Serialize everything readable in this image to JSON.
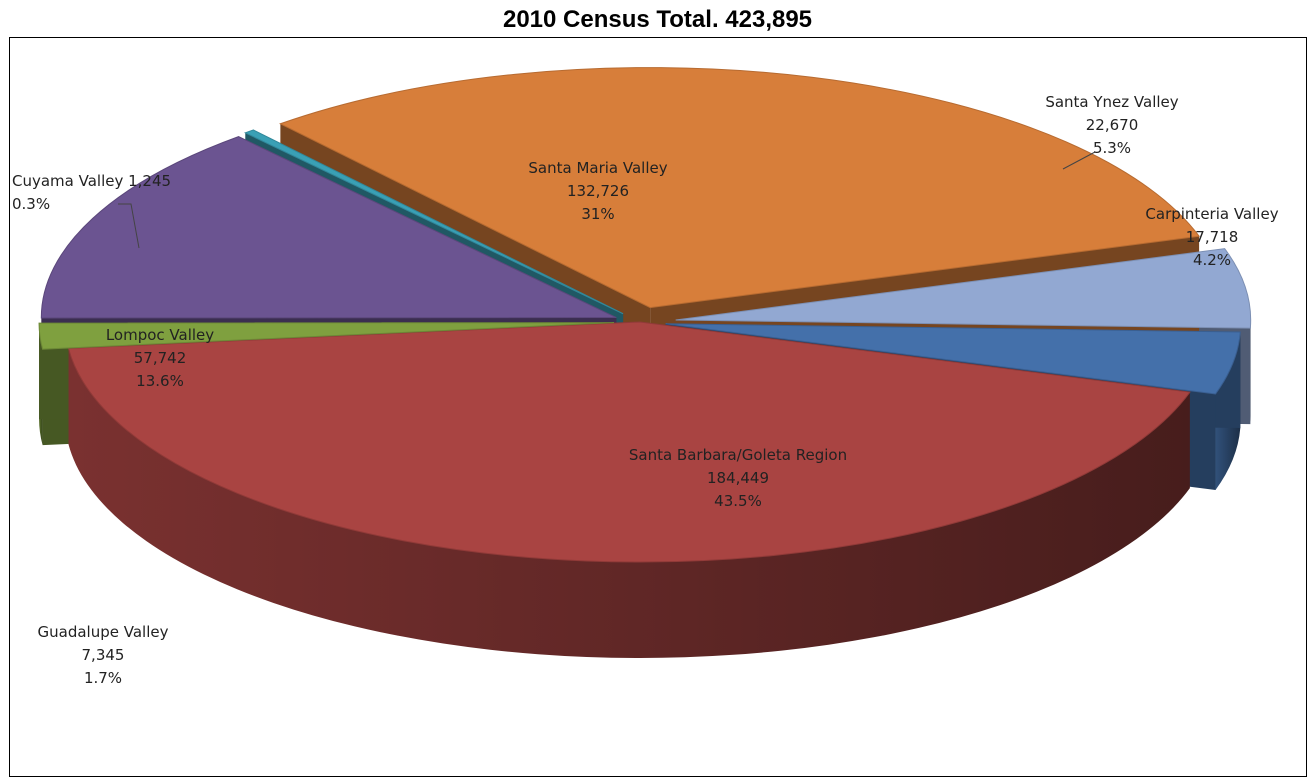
{
  "chart_data": {
    "type": "pie",
    "title": "2010 Census Total. 423,895",
    "slices": [
      {
        "name": "Santa Barbara/Goleta Region",
        "value": 184449,
        "value_label": "184,449",
        "percent_label": "43.5%",
        "color": "#A94442"
      },
      {
        "name": "Guadalupe Valley",
        "value": 7345,
        "value_label": "7,345",
        "percent_label": "1.7%",
        "color": "#7FA03F"
      },
      {
        "name": "Lompoc Valley",
        "value": 57742,
        "value_label": "57,742",
        "percent_label": "13.6%",
        "color": "#6B5491"
      },
      {
        "name": "Cuyama Valley",
        "value": 1245,
        "value_label": "1,245",
        "percent_label": "0.3%",
        "color": "#3AA0B5"
      },
      {
        "name": "Santa Maria Valley",
        "value": 132726,
        "value_label": "132,726",
        "percent_label": "31%",
        "color": "#D77E3A"
      },
      {
        "name": "Santa Ynez Valley",
        "value": 22670,
        "value_label": "22,670",
        "percent_label": "5.3%",
        "color": "#92A8D2"
      },
      {
        "name": "Carpinteria Valley",
        "value": 17718,
        "value_label": "17,718",
        "percent_label": "4.2%",
        "color": "#4470AA"
      }
    ]
  }
}
